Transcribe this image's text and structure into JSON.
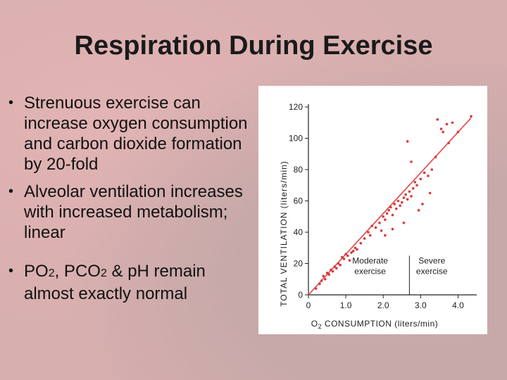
{
  "slide": {
    "title": "Respiration During Exercise",
    "bullets": [
      {
        "text": "Strenuous exercise can increase oxygen consumption and carbon dioxide formation by 20-fold"
      },
      {
        "text": "Alveolar ventilation increases with increased metabolism; linear"
      },
      {
        "parts": [
          "PO",
          "2",
          ", PCO",
          "2",
          " & pH remain almost exactly normal"
        ]
      }
    ],
    "bullet_glyph": "•"
  },
  "chart_data": {
    "type": "scatter",
    "xlabel_pre": "O",
    "xlabel_sub": "2",
    "xlabel_post": " CONSUMPTION (liters/min)",
    "ylabel": "TOTAL VENTILATION (liters/min)",
    "xlim": [
      0,
      45
    ],
    "ylim": [
      0,
      120
    ],
    "x_ticks": [
      "0",
      "1.0",
      "2.0",
      "3.0",
      "4.0"
    ],
    "x_tick_values": [
      0,
      10,
      20,
      30,
      40
    ],
    "y_ticks": [
      "0",
      "20",
      "40",
      "60",
      "80",
      "100",
      "120"
    ],
    "y_tick_values": [
      0,
      20,
      40,
      60,
      80,
      100,
      120
    ],
    "regions": [
      {
        "label_lines": [
          "Moderate",
          "exercise"
        ]
      },
      {
        "label_lines": [
          "Severe",
          "exercise"
        ]
      }
    ],
    "region_divider_x": 27,
    "fit_line": {
      "x": [
        0,
        43.5
      ],
      "y": [
        0,
        113
      ]
    },
    "points": [
      [
        2,
        4
      ],
      [
        3,
        7
      ],
      [
        3.5,
        9
      ],
      [
        4,
        12
      ],
      [
        4.5,
        10
      ],
      [
        5,
        14
      ],
      [
        5.5,
        13
      ],
      [
        6,
        16
      ],
      [
        6.5,
        15
      ],
      [
        7,
        18
      ],
      [
        7.5,
        17
      ],
      [
        8,
        20
      ],
      [
        8.5,
        19
      ],
      [
        9,
        24
      ],
      [
        9.5,
        23
      ],
      [
        10,
        26
      ],
      [
        10.5,
        25
      ],
      [
        11,
        22
      ],
      [
        11.5,
        27
      ],
      [
        12,
        28
      ],
      [
        12.5,
        30
      ],
      [
        13,
        29
      ],
      [
        14,
        33
      ],
      [
        15,
        36
      ],
      [
        16,
        40
      ],
      [
        16.5,
        38
      ],
      [
        17,
        44
      ],
      [
        18,
        43
      ],
      [
        19,
        46
      ],
      [
        19.5,
        41
      ],
      [
        20,
        50
      ],
      [
        20.5,
        48
      ],
      [
        21,
        52
      ],
      [
        21.5,
        54
      ],
      [
        22,
        56
      ],
      [
        22.5,
        51
      ],
      [
        23,
        58
      ],
      [
        23.5,
        55
      ],
      [
        24,
        60
      ],
      [
        24.5,
        57
      ],
      [
        25,
        59
      ],
      [
        25.5,
        62
      ],
      [
        26,
        64
      ],
      [
        26.5,
        61
      ],
      [
        27,
        66
      ],
      [
        27.5,
        63
      ],
      [
        28,
        68
      ],
      [
        28.5,
        72
      ],
      [
        29,
        70
      ],
      [
        30,
        74
      ],
      [
        31,
        78
      ],
      [
        32,
        76
      ],
      [
        33,
        80
      ],
      [
        26.5,
        98
      ],
      [
        27.5,
        85
      ],
      [
        34.5,
        112
      ],
      [
        35.5,
        106
      ],
      [
        37,
        109
      ],
      [
        38.5,
        110
      ],
      [
        36,
        104
      ],
      [
        37.5,
        97
      ],
      [
        40,
        104
      ],
      [
        43.5,
        114
      ],
      [
        34,
        88
      ],
      [
        32.5,
        65
      ],
      [
        30.5,
        58
      ],
      [
        29.5,
        54
      ],
      [
        25.5,
        46
      ],
      [
        22.5,
        42
      ],
      [
        20.5,
        38
      ]
    ]
  }
}
